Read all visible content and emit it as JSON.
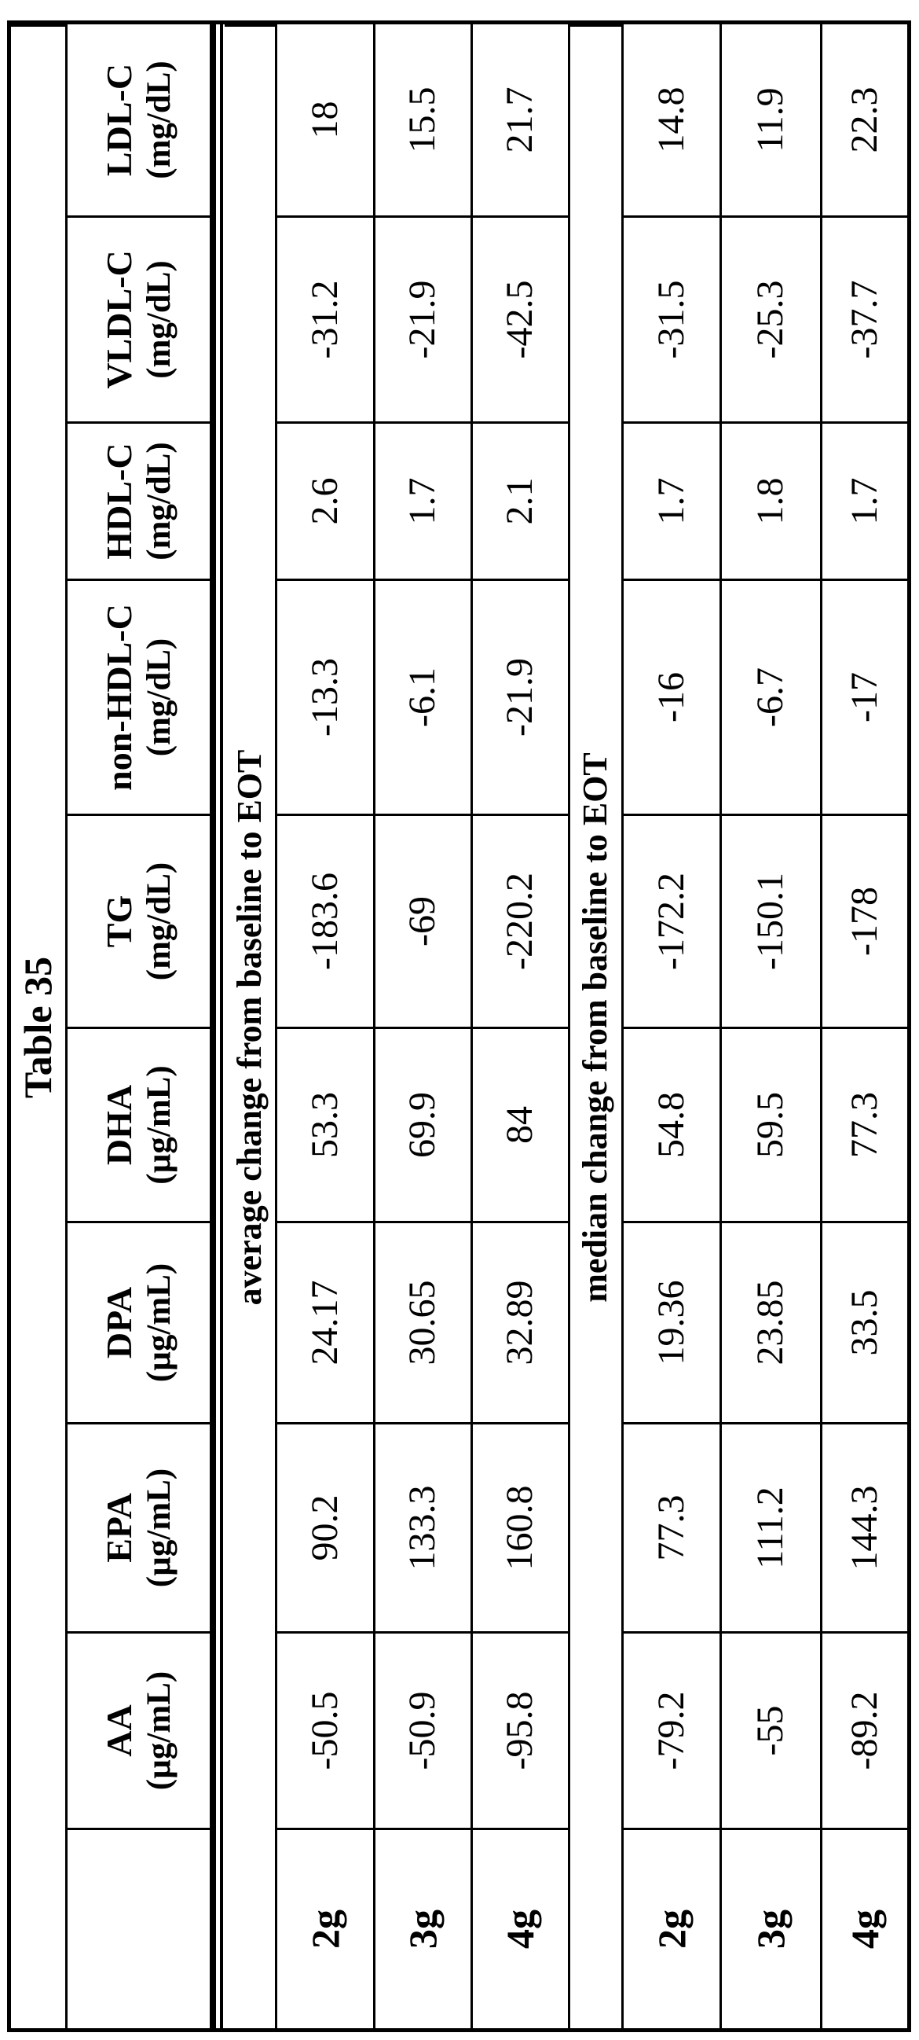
{
  "title": "Table 35",
  "columns": [
    {
      "name": "AA",
      "unit": "(µg/mL)"
    },
    {
      "name": "EPA",
      "unit": "(µg/mL)"
    },
    {
      "name": "DPA",
      "unit": "(µg/mL)"
    },
    {
      "name": "DHA",
      "unit": "(µg/mL)"
    },
    {
      "name": "TG",
      "unit": "(mg/dL)"
    },
    {
      "name": "non-HDL-C",
      "unit": "(mg/dL)"
    },
    {
      "name": "HDL-C",
      "unit": "(mg/dL)"
    },
    {
      "name": "VLDL-C",
      "unit": "(mg/dL)"
    },
    {
      "name": "LDL-C",
      "unit": "(mg/dL)"
    }
  ],
  "sections": [
    {
      "heading": "average change from baseline to EOT",
      "rows": [
        {
          "dose": "2g",
          "values": [
            "-50.5",
            "90.2",
            "24.17",
            "53.3",
            "-183.6",
            "-13.3",
            "2.6",
            "-31.2",
            "18"
          ]
        },
        {
          "dose": "3g",
          "values": [
            "-50.9",
            "133.3",
            "30.65",
            "69.9",
            "-69",
            "-6.1",
            "1.7",
            "-21.9",
            "15.5"
          ]
        },
        {
          "dose": "4g",
          "values": [
            "-95.8",
            "160.8",
            "32.89",
            "84",
            "-220.2",
            "-21.9",
            "2.1",
            "-42.5",
            "21.7"
          ]
        }
      ]
    },
    {
      "heading": "median change from baseline to EOT",
      "rows": [
        {
          "dose": "2g",
          "values": [
            "-79.2",
            "77.3",
            "19.36",
            "54.8",
            "-172.2",
            "-16",
            "1.7",
            "-31.5",
            "14.8"
          ]
        },
        {
          "dose": "3g",
          "values": [
            "-55",
            "111.2",
            "23.85",
            "59.5",
            "-150.1",
            "-6.7",
            "1.8",
            "-25.3",
            "11.9"
          ]
        },
        {
          "dose": "4g",
          "values": [
            "-89.2",
            "144.3",
            "33.5",
            "77.3",
            "-178",
            "-17",
            "1.7",
            "-37.7",
            "22.3"
          ]
        }
      ]
    }
  ]
}
